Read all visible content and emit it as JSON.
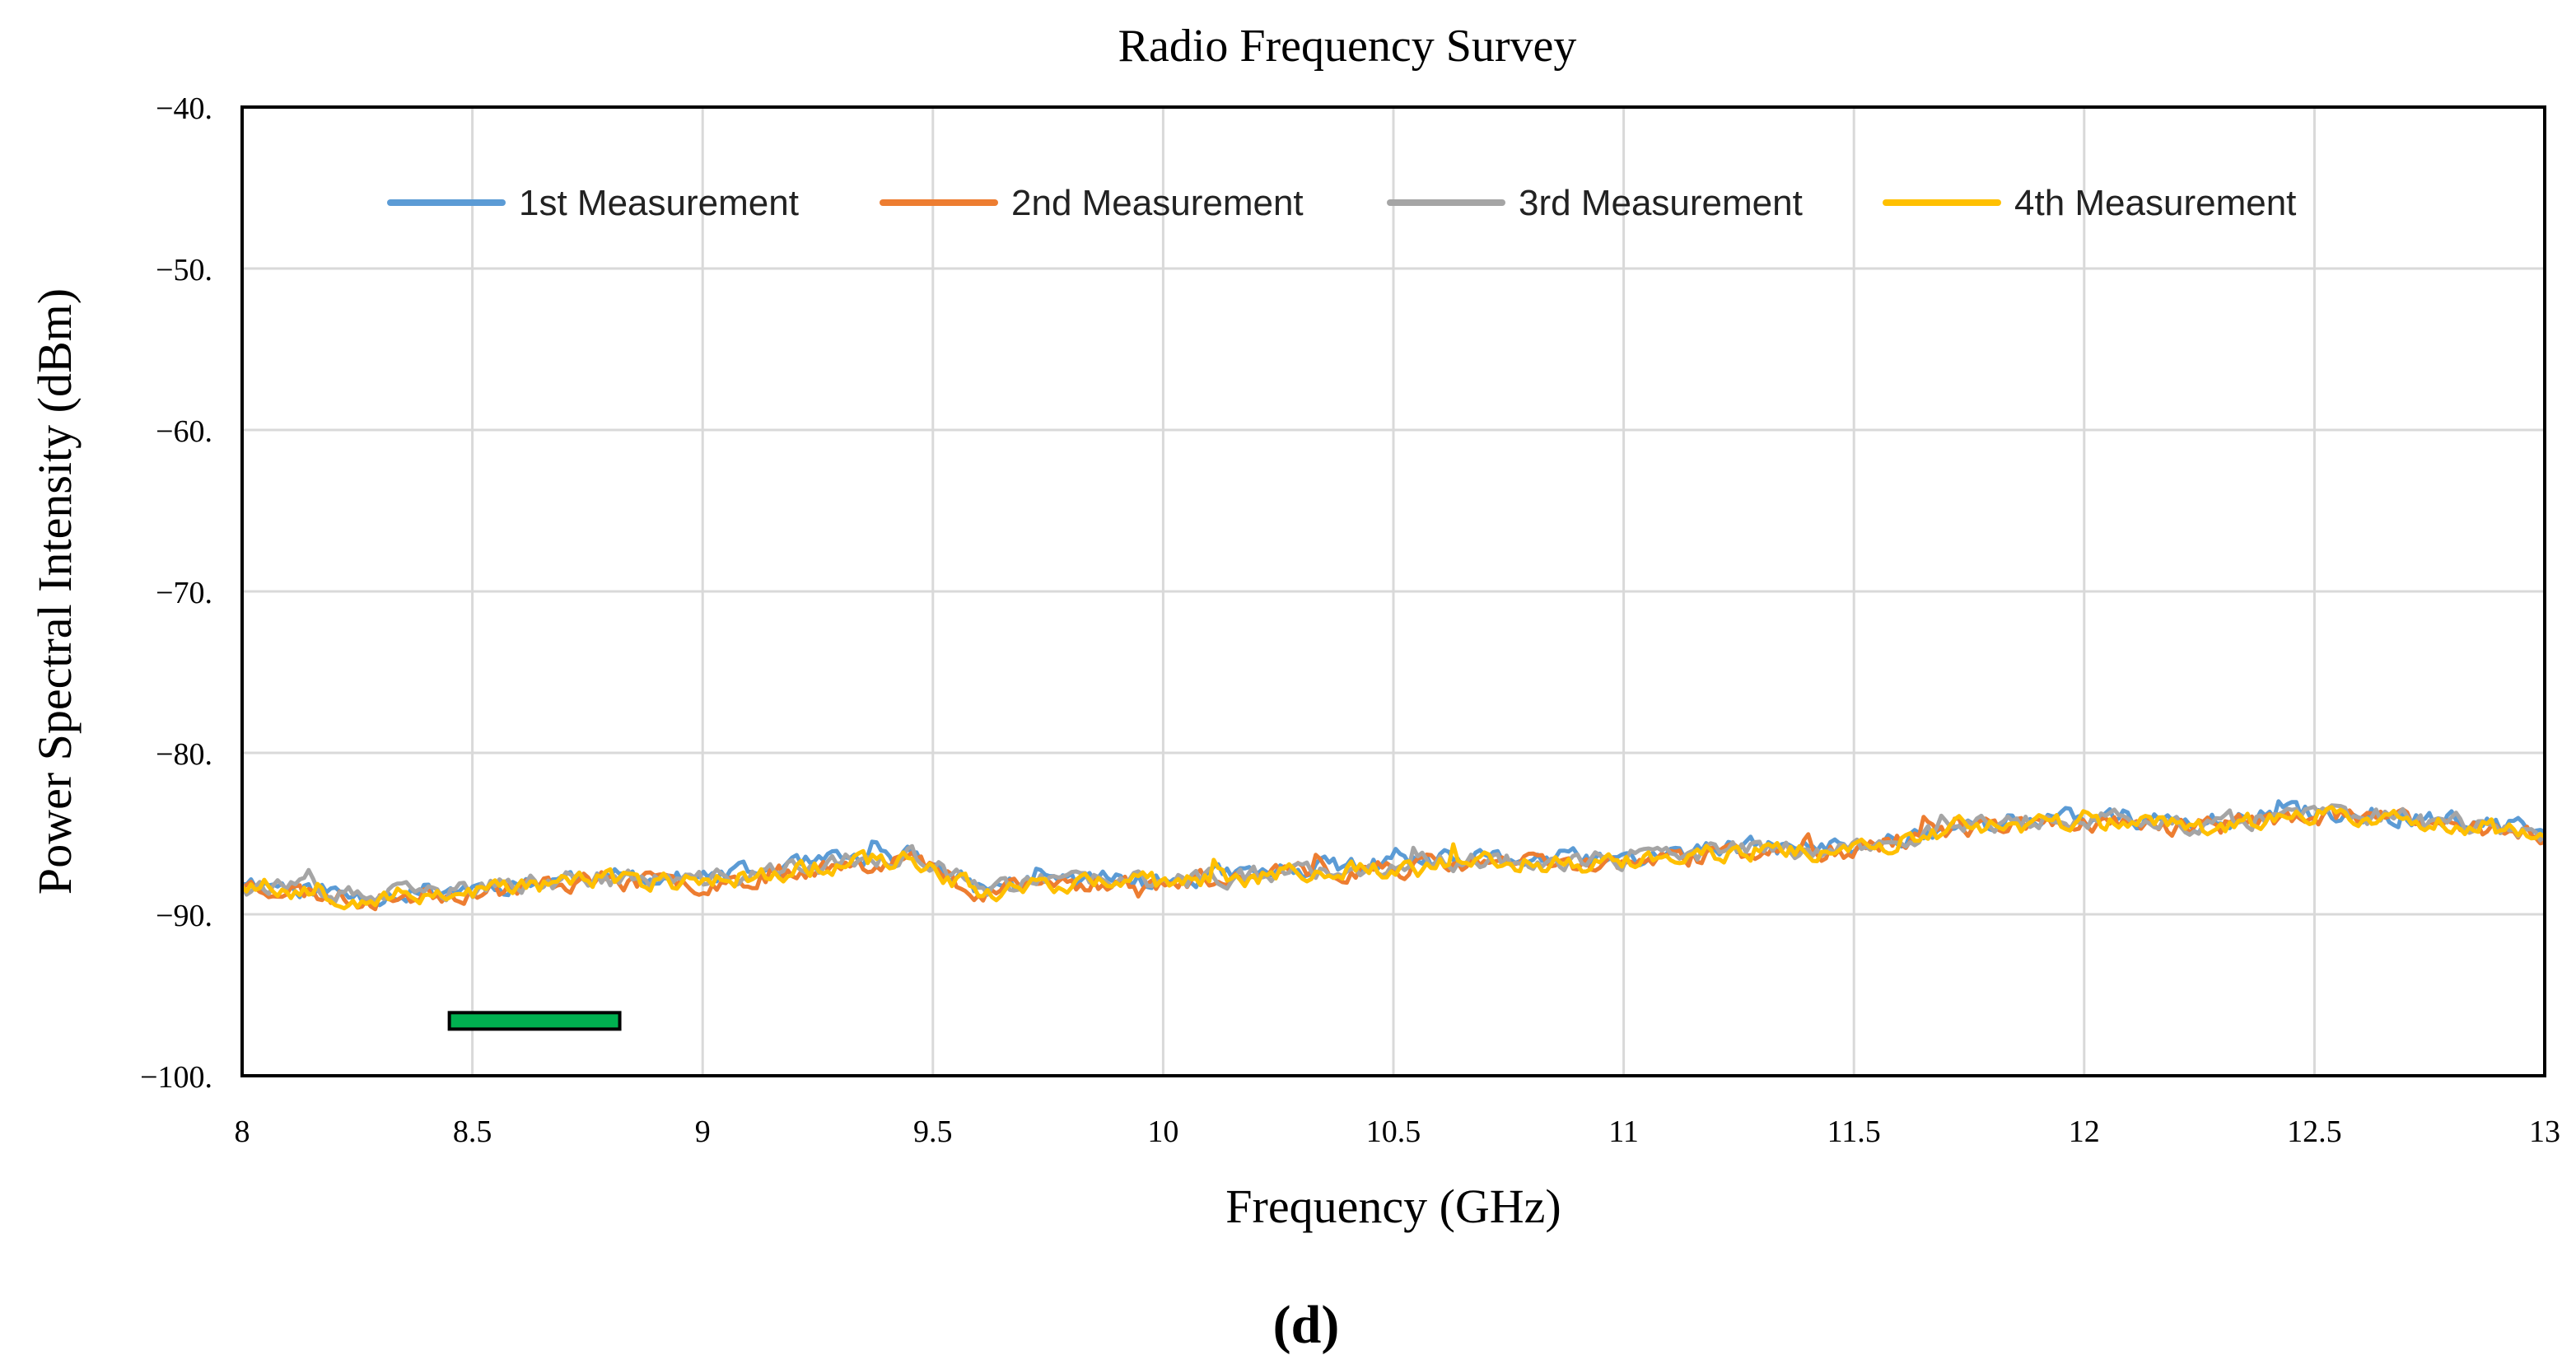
{
  "chart_data": {
    "type": "line",
    "title": "Radio Frequency Survey",
    "xlabel": "Frequency (GHz)",
    "ylabel": "Power Spectral Intensity (dBm)",
    "xlim": [
      8,
      13
    ],
    "ylim": [
      -100,
      -40
    ],
    "xticks": [
      8,
      8.5,
      9,
      9.5,
      10,
      10.5,
      11,
      11.5,
      12,
      12.5,
      13
    ],
    "xtick_labels": [
      "8",
      "8.5",
      "9",
      "9.5",
      "10",
      "10.5",
      "11",
      "11.5",
      "12",
      "12.5",
      "13"
    ],
    "yticks": [
      -40,
      -50,
      -60,
      -70,
      -80,
      -90,
      -100
    ],
    "ytick_labels": [
      "−40.",
      "−50.",
      "−60.",
      "−70.",
      "−80.",
      "−90.",
      "−100."
    ],
    "grid": true,
    "legend_position": "top",
    "trend": {
      "x": [
        8.0,
        8.25,
        8.5,
        8.75,
        9.0,
        9.25,
        9.45,
        9.6,
        9.75,
        10.0,
        10.25,
        10.5,
        10.75,
        11.0,
        11.25,
        11.5,
        11.75,
        12.0,
        12.25,
        12.5,
        12.75,
        13.0
      ],
      "y": [
        -88.0,
        -89.0,
        -88.5,
        -87.8,
        -88.0,
        -87.0,
        -86.4,
        -88.5,
        -88.0,
        -88.0,
        -87.5,
        -87.0,
        -86.7,
        -86.8,
        -86.0,
        -86.0,
        -84.5,
        -84.2,
        -84.5,
        -83.8,
        -84.2,
        -85.0
      ]
    },
    "series": [
      {
        "name": "1st Measurement",
        "color": "#5B9BD5",
        "seed": 11,
        "offset": 0.15
      },
      {
        "name": "2nd Measurement",
        "color": "#ED7D31",
        "seed": 23,
        "offset": -0.1
      },
      {
        "name": "3rd Measurement",
        "color": "#A5A5A5",
        "seed": 37,
        "offset": 0.05
      },
      {
        "name": "4th Measurement",
        "color": "#FFC000",
        "seed": 53,
        "offset": -0.05
      }
    ],
    "points_per_series": 520,
    "noise_amplitude_db": 0.9,
    "band_marker": {
      "x_start": 8.45,
      "x_end": 8.82,
      "y": -96.6,
      "color": "#00B050"
    }
  },
  "caption": "(d)"
}
